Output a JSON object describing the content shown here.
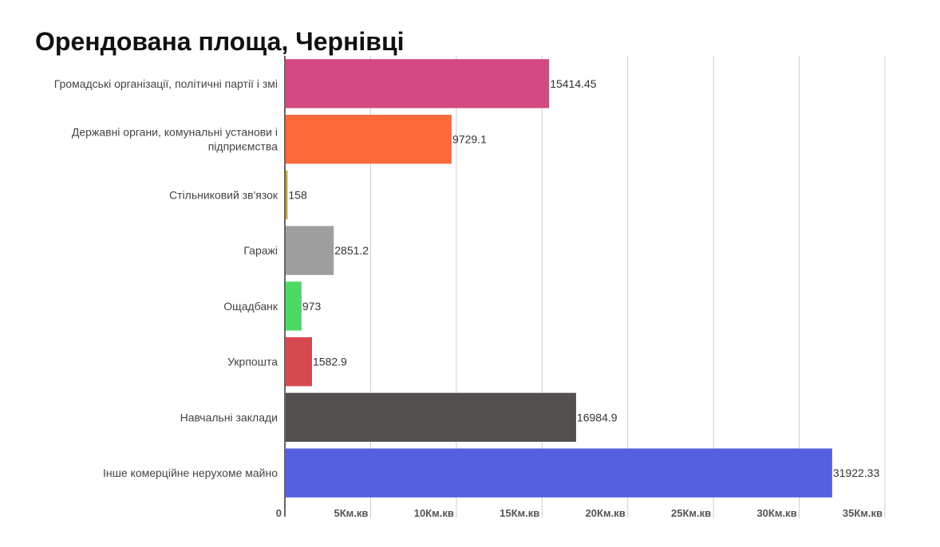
{
  "chart_data": {
    "type": "bar",
    "orientation": "horizontal",
    "title": "Орендована площа, Чернівці",
    "categories": [
      [
        "Громадські організації, політичні партії і змі"
      ],
      [
        "Державні органи, комунальні установи і",
        "підприємства"
      ],
      [
        "Стільниковий зв'язок"
      ],
      [
        "Гаражі"
      ],
      [
        "Ощадбанк"
      ],
      [
        "Укрпошта"
      ],
      [
        "Навчальні заклади"
      ],
      [
        "Інше комерційне нерухоме майно"
      ]
    ],
    "values": [
      15414.45,
      9729.1,
      158,
      2851.2,
      973,
      1582.9,
      16984.9,
      31922.33
    ],
    "value_labels": [
      "15414.45",
      "9729.1",
      "158",
      "2851.2",
      "973",
      "1582.9",
      "16984.9",
      "31922.33"
    ],
    "colors": [
      "#d34a82",
      "#ff6a3a",
      "#c7a82a",
      "#9e9e9e",
      "#4cd964",
      "#d64950",
      "#555050",
      "#5560e0"
    ],
    "xlim": [
      0,
      35000
    ],
    "x_ticks": [
      0,
      5000,
      10000,
      15000,
      20000,
      25000,
      30000,
      35000
    ],
    "x_tick_labels": [
      "0",
      "5Км.кв",
      "10Км.кв",
      "15Км.кв",
      "20Км.кв",
      "25Км.кв",
      "30Км.кв",
      "35Км.кв"
    ],
    "grid": "vertical",
    "legend": "none"
  }
}
